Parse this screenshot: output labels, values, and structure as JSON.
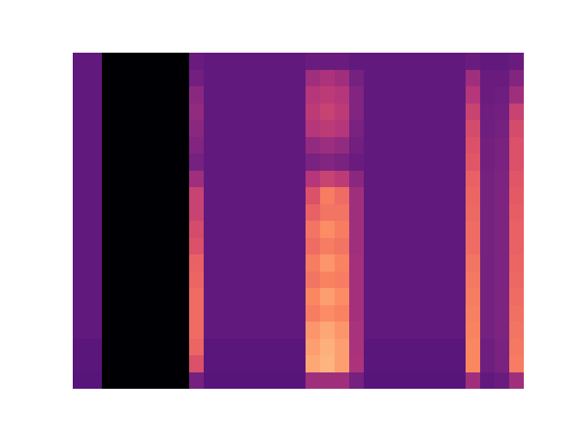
{
  "chart_data": {
    "type": "heatmap",
    "color": "magma",
    "tick_labels": false,
    "color_range": [
      0,
      100
    ],
    "cells": [
      [
        30,
        30,
        0,
        0,
        0,
        0,
        0,
        0,
        32,
        30,
        30,
        30,
        30,
        30,
        30,
        30,
        32,
        32,
        32,
        30,
        30,
        30,
        30,
        30,
        30,
        30,
        30,
        32,
        30,
        30,
        32
      ],
      [
        30,
        30,
        0,
        0,
        0,
        0,
        0,
        0,
        34,
        30,
        30,
        30,
        30,
        30,
        30,
        30,
        45,
        48,
        45,
        35,
        30,
        30,
        30,
        30,
        30,
        30,
        30,
        45,
        32,
        32,
        38
      ],
      [
        30,
        30,
        0,
        0,
        0,
        0,
        0,
        0,
        40,
        30,
        30,
        30,
        30,
        30,
        30,
        30,
        50,
        52,
        50,
        38,
        30,
        30,
        30,
        30,
        30,
        30,
        30,
        50,
        32,
        33,
        45
      ],
      [
        30,
        30,
        0,
        0,
        0,
        0,
        0,
        0,
        42,
        30,
        30,
        30,
        30,
        30,
        30,
        30,
        52,
        55,
        52,
        38,
        30,
        30,
        30,
        30,
        30,
        30,
        30,
        55,
        33,
        34,
        55
      ],
      [
        30,
        30,
        0,
        0,
        0,
        0,
        0,
        0,
        40,
        30,
        30,
        30,
        30,
        30,
        30,
        30,
        50,
        52,
        50,
        36,
        30,
        30,
        30,
        30,
        30,
        30,
        30,
        58,
        33,
        35,
        58
      ],
      [
        30,
        30,
        0,
        0,
        0,
        0,
        0,
        0,
        38,
        30,
        30,
        30,
        30,
        30,
        30,
        30,
        42,
        44,
        42,
        34,
        30,
        30,
        30,
        30,
        30,
        30,
        30,
        60,
        34,
        36,
        60
      ],
      [
        30,
        30,
        0,
        0,
        0,
        0,
        0,
        0,
        35,
        30,
        30,
        30,
        30,
        30,
        30,
        30,
        36,
        38,
        36,
        32,
        30,
        30,
        30,
        30,
        30,
        30,
        30,
        62,
        34,
        36,
        60
      ],
      [
        30,
        30,
        0,
        0,
        0,
        0,
        0,
        0,
        45,
        30,
        30,
        30,
        30,
        30,
        30,
        30,
        50,
        55,
        52,
        40,
        30,
        30,
        30,
        30,
        30,
        30,
        30,
        65,
        35,
        37,
        62
      ],
      [
        30,
        30,
        0,
        0,
        0,
        0,
        0,
        0,
        55,
        30,
        30,
        30,
        30,
        30,
        30,
        30,
        60,
        72,
        68,
        45,
        30,
        30,
        30,
        30,
        30,
        30,
        30,
        66,
        35,
        37,
        63
      ],
      [
        30,
        30,
        0,
        0,
        0,
        0,
        0,
        0,
        55,
        30,
        30,
        30,
        30,
        30,
        30,
        30,
        65,
        70,
        70,
        45,
        30,
        30,
        30,
        30,
        30,
        30,
        30,
        67,
        35,
        37,
        64
      ],
      [
        30,
        30,
        0,
        0,
        0,
        0,
        0,
        0,
        58,
        30,
        30,
        30,
        30,
        30,
        30,
        30,
        70,
        76,
        72,
        45,
        30,
        30,
        30,
        30,
        30,
        30,
        30,
        68,
        35,
        37,
        65
      ],
      [
        30,
        30,
        0,
        0,
        0,
        0,
        0,
        0,
        60,
        30,
        30,
        30,
        30,
        30,
        30,
        30,
        68,
        72,
        70,
        45,
        30,
        30,
        30,
        30,
        30,
        30,
        30,
        68,
        35,
        37,
        65
      ],
      [
        30,
        30,
        0,
        0,
        0,
        0,
        0,
        0,
        65,
        30,
        30,
        30,
        30,
        30,
        30,
        30,
        72,
        78,
        74,
        46,
        30,
        30,
        30,
        30,
        30,
        30,
        30,
        70,
        35,
        37,
        66
      ],
      [
        30,
        30,
        0,
        0,
        0,
        0,
        0,
        0,
        66,
        30,
        30,
        30,
        30,
        30,
        30,
        30,
        70,
        74,
        72,
        46,
        30,
        30,
        30,
        30,
        30,
        30,
        30,
        71,
        35,
        37,
        67
      ],
      [
        30,
        30,
        0,
        0,
        0,
        0,
        0,
        0,
        68,
        30,
        30,
        30,
        30,
        30,
        30,
        30,
        75,
        80,
        76,
        46,
        30,
        30,
        30,
        30,
        30,
        30,
        30,
        72,
        35,
        37,
        68
      ],
      [
        30,
        30,
        0,
        0,
        0,
        0,
        0,
        0,
        68,
        30,
        30,
        30,
        30,
        30,
        30,
        30,
        72,
        76,
        74,
        46,
        30,
        30,
        30,
        30,
        30,
        30,
        30,
        73,
        35,
        37,
        69
      ],
      [
        30,
        30,
        0,
        0,
        0,
        0,
        0,
        0,
        68,
        30,
        30,
        30,
        30,
        30,
        30,
        30,
        78,
        82,
        78,
        47,
        30,
        30,
        30,
        30,
        30,
        30,
        30,
        74,
        35,
        37,
        70
      ],
      [
        28,
        28,
        0,
        0,
        0,
        0,
        0,
        0,
        66,
        28,
        28,
        28,
        28,
        28,
        28,
        28,
        80,
        84,
        80,
        47,
        28,
        28,
        28,
        28,
        28,
        28,
        28,
        75,
        33,
        36,
        71
      ],
      [
        28,
        28,
        0,
        0,
        0,
        0,
        0,
        0,
        60,
        28,
        28,
        28,
        28,
        28,
        28,
        28,
        82,
        85,
        80,
        48,
        28,
        28,
        28,
        28,
        28,
        28,
        28,
        75,
        33,
        36,
        72
      ],
      [
        27,
        27,
        0,
        0,
        0,
        0,
        0,
        0,
        35,
        27,
        27,
        27,
        27,
        27,
        27,
        27,
        45,
        45,
        45,
        35,
        27,
        27,
        27,
        27,
        27,
        27,
        27,
        45,
        30,
        32,
        45
      ]
    ]
  }
}
